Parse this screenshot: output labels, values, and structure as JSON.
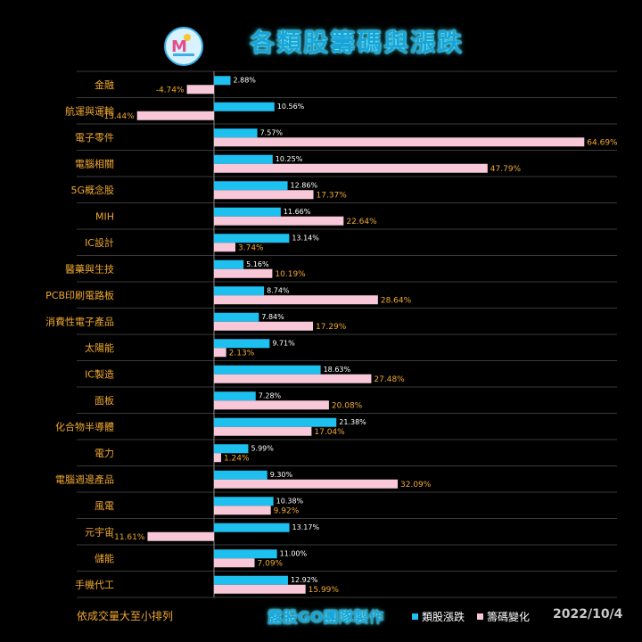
{
  "header": {
    "title": "各類股籌碼與漲跌"
  },
  "footer": {
    "note": "依成交量大至小排列",
    "credit": "露股GO團隊製作",
    "date": "2022/10/4"
  },
  "colors": {
    "blue": "#1ec0f0",
    "pink": "#f8c8d8",
    "blue_label": "#ffffff",
    "pink_label": "#f0a830",
    "category": "#f0a830",
    "grid": "#3a3a3a"
  },
  "chart_data": {
    "type": "bar",
    "orientation": "horizontal",
    "xlim": [
      -20,
      70
    ],
    "legend": "bottom",
    "categories": [
      "金融",
      "航運與運輸",
      "電子零件",
      "電腦相關",
      "5G概念股",
      "MIH",
      "IC設計",
      "醫藥與生技",
      "PCB印刷電路板",
      "消費性電子產品",
      "太陽能",
      "IC製造",
      "面板",
      "化合物半導體",
      "電力",
      "電腦週邊產品",
      "風電",
      "元宇宙",
      "儲能",
      "手機代工"
    ],
    "series": [
      {
        "name": "類股漲跌",
        "values": [
          2.88,
          10.56,
          7.57,
          10.25,
          12.86,
          11.66,
          13.14,
          5.16,
          8.74,
          7.84,
          9.71,
          18.63,
          7.28,
          21.38,
          5.99,
          9.3,
          10.38,
          13.17,
          11.0,
          12.92
        ],
        "labels": [
          "2.88%",
          "10.56%",
          "7.57%",
          "10.25%",
          "12.86%",
          "11.66%",
          "13.14%",
          "5.16%",
          "8.74%",
          "7.84%",
          "9.71%",
          "18.63%",
          "7.28%",
          "21.38%",
          "5.99%",
          "9.30%",
          "10.38%",
          "13.17%",
          "11.00%",
          "12.92%"
        ]
      },
      {
        "name": "籌碼變化",
        "values": [
          -4.74,
          -13.44,
          64.69,
          47.79,
          17.37,
          22.64,
          3.74,
          10.19,
          28.64,
          17.29,
          2.13,
          27.48,
          20.08,
          17.04,
          1.24,
          32.09,
          9.92,
          -11.61,
          7.09,
          15.99
        ],
        "labels": [
          "-4.74%",
          "-13.44%",
          "64.69%",
          "47.79%",
          "17.37%",
          "22.64%",
          "3.74%",
          "10.19%",
          "28.64%",
          "17.29%",
          "2.13%",
          "27.48%",
          "20.08%",
          "17.04%",
          "1.24%",
          "32.09%",
          "9.92%",
          "-11.61%",
          "7.09%",
          "15.99%"
        ]
      }
    ]
  }
}
